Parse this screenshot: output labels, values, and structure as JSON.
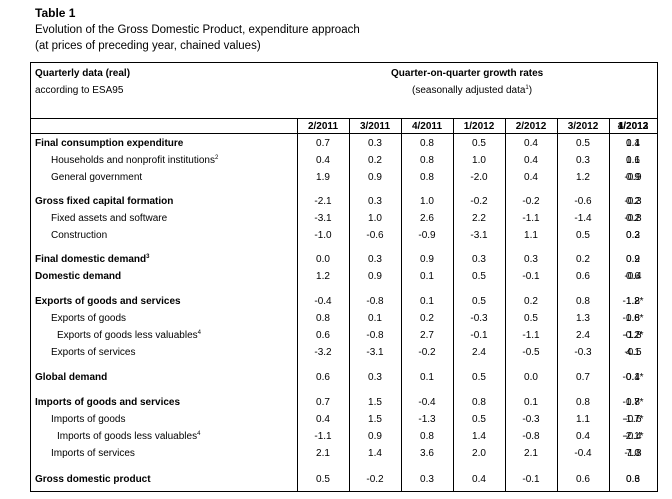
{
  "title": "Table 1",
  "subtitle1": "Evolution of the Gross Domestic Product, expenditure approach",
  "subtitle2": "(at prices of preceding year, chained values)",
  "header": {
    "left1": "Quarterly data (real)",
    "left2": "according to ESA95",
    "right1": "Quarter-on-quarter growth rates",
    "right2": "(seasonally adjusted data",
    "right2_sup": "1",
    "right2_close": ")"
  },
  "columns": [
    "2/2011",
    "3/2011",
    "4/2011",
    "1/2012",
    "2/2012",
    "3/2012",
    "4/2012",
    "1/2013"
  ],
  "rows": [
    {
      "label": "Final consumption expenditure",
      "sup": "",
      "style": "bold",
      "values": [
        "0.7",
        "0.3",
        "0.8",
        "0.5",
        "0.4",
        "0.5",
        "1.1",
        "0.4"
      ]
    },
    {
      "label": "Households and nonprofit institutions",
      "sup": "2",
      "style": "ind1",
      "values": [
        "0.4",
        "0.2",
        "0.8",
        "1.0",
        "0.4",
        "0.3",
        "1.1",
        "0.6"
      ]
    },
    {
      "label": "General government",
      "sup": "",
      "style": "ind1",
      "values": [
        "1.9",
        "0.9",
        "0.8",
        "-2.0",
        "0.4",
        "1.2",
        "0.9",
        "-0.9"
      ]
    },
    {
      "label": "Gross fixed capital formation",
      "sup": "",
      "style": "bold",
      "values": [
        "-2.1",
        "0.3",
        "1.0",
        "-0.2",
        "-0.2",
        "-0.6",
        "0.2",
        "-0.3"
      ]
    },
    {
      "label": "Fixed assets and software",
      "sup": "",
      "style": "ind1",
      "values": [
        "-3.1",
        "1.0",
        "2.6",
        "2.2",
        "-1.1",
        "-1.4",
        "0.2",
        "-0.8"
      ]
    },
    {
      "label": "Construction",
      "sup": "",
      "style": "ind1",
      "values": [
        "-1.0",
        "-0.6",
        "-0.9",
        "-3.1",
        "1.1",
        "0.5",
        "0.2",
        "0.3"
      ]
    },
    {
      "label": "Final domestic demand",
      "sup": "3",
      "style": "bold",
      "values": [
        "0.0",
        "0.3",
        "0.9",
        "0.3",
        "0.3",
        "0.2",
        "0.9",
        "0.2"
      ]
    },
    {
      "label": "Domestic demand",
      "sup": "",
      "style": "bold",
      "values": [
        "1.2",
        "0.9",
        "0.1",
        "0.5",
        "-0.1",
        "0.6",
        "-0.4",
        "0.6"
      ]
    },
    {
      "label": "Exports of goods and services",
      "sup": "",
      "style": "bold",
      "values": [
        "-0.4",
        "-0.8",
        "0.1",
        "0.5",
        "0.2",
        "0.8",
        "1.8",
        "-1.2*"
      ]
    },
    {
      "label": "Exports of goods",
      "sup": "",
      "style": "ind1",
      "values": [
        "0.8",
        "0.1",
        "0.2",
        "-0.3",
        "0.5",
        "1.3",
        "0.8",
        "-1.6*"
      ]
    },
    {
      "label": "Exports of goods less valuables",
      "sup": "4",
      "style": "ind2",
      "values": [
        "0.6",
        "-0.8",
        "2.7",
        "-0.1",
        "-1.1",
        "2.4",
        "-1.8",
        "-0.2*"
      ]
    },
    {
      "label": "Exports of services",
      "sup": "",
      "style": "ind1",
      "values": [
        "-3.2",
        "-3.1",
        "-0.2",
        "2.4",
        "-0.5",
        "-0.3",
        "4.1",
        "-0.5"
      ]
    },
    {
      "label": "Global demand",
      "sup": "",
      "style": "bold",
      "values": [
        "0.6",
        "0.3",
        "0.1",
        "0.5",
        "0.0",
        "0.7",
        "0.4",
        "-0.1*"
      ]
    },
    {
      "label": "Imports of goods and services",
      "sup": "",
      "style": "bold",
      "values": [
        "0.7",
        "1.5",
        "-0.4",
        "0.8",
        "0.1",
        "0.8",
        "0.8",
        "-1.7*"
      ]
    },
    {
      "label": "Imports of goods",
      "sup": "",
      "style": "ind1",
      "values": [
        "0.4",
        "1.5",
        "-1.3",
        "0.5",
        "-0.3",
        "1.1",
        "-0.6",
        "-1.7*"
      ]
    },
    {
      "label": "Imports of goods less valuables",
      "sup": "4",
      "style": "ind2",
      "values": [
        "-1.1",
        "0.9",
        "0.8",
        "1.4",
        "-0.8",
        "0.4",
        "-0.4",
        "-2.1*"
      ]
    },
    {
      "label": "Imports of services",
      "sup": "",
      "style": "ind1",
      "values": [
        "2.1",
        "1.4",
        "3.6",
        "2.0",
        "2.1",
        "-0.4",
        "7.0",
        "-1.8"
      ]
    },
    {
      "label": "Gross domestic product",
      "sup": "",
      "style": "bold",
      "values": [
        "0.5",
        "-0.2",
        "0.3",
        "0.4",
        "-0.1",
        "0.6",
        "0.3",
        "0.6"
      ]
    }
  ]
}
